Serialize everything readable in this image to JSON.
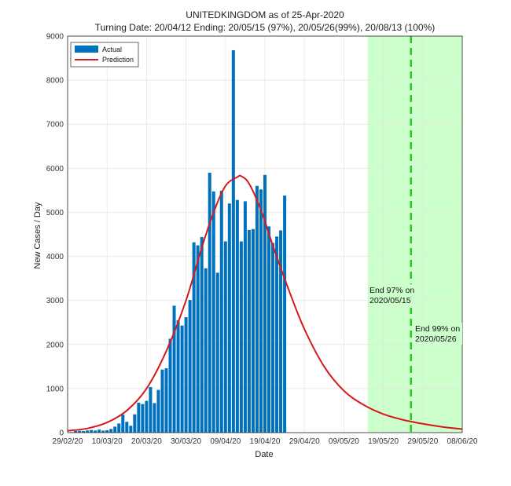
{
  "chart_data": {
    "type": "bar",
    "title": "UNITEDKINGDOM as of 25-Apr-2020",
    "subtitle": "Turning Date: 20/04/12  Ending: 20/05/15 (97%), 20/05/26(99%), 20/08/13 (100%)",
    "xlabel": "Date",
    "ylabel": "New Cases / Day",
    "xlim": [
      "2020-02-29",
      "2020-06-08"
    ],
    "ylim": [
      0,
      9000
    ],
    "grid": true,
    "legend_position": "top-left",
    "yticks": [
      0,
      1000,
      2000,
      3000,
      4000,
      5000,
      6000,
      7000,
      8000,
      9000
    ],
    "xticks": [
      "29/02/20",
      "10/03/20",
      "20/03/20",
      "30/03/20",
      "09/04/20",
      "19/04/20",
      "29/04/20",
      "09/05/20",
      "19/05/20",
      "29/05/20",
      "08/06/20"
    ],
    "xtick_dates": [
      "2020-02-29",
      "2020-03-10",
      "2020-03-20",
      "2020-03-30",
      "2020-04-09",
      "2020-04-19",
      "2020-04-29",
      "2020-05-09",
      "2020-05-19",
      "2020-05-29",
      "2020-06-08"
    ],
    "series": [
      {
        "name": "Actual",
        "kind": "bar",
        "color": "#0072BD",
        "x": [
          "2020-03-01",
          "2020-03-02",
          "2020-03-03",
          "2020-03-04",
          "2020-03-05",
          "2020-03-06",
          "2020-03-07",
          "2020-03-08",
          "2020-03-09",
          "2020-03-10",
          "2020-03-11",
          "2020-03-12",
          "2020-03-13",
          "2020-03-14",
          "2020-03-15",
          "2020-03-16",
          "2020-03-17",
          "2020-03-18",
          "2020-03-19",
          "2020-03-20",
          "2020-03-21",
          "2020-03-22",
          "2020-03-23",
          "2020-03-24",
          "2020-03-25",
          "2020-03-26",
          "2020-03-27",
          "2020-03-28",
          "2020-03-29",
          "2020-03-30",
          "2020-03-31",
          "2020-04-01",
          "2020-04-02",
          "2020-04-03",
          "2020-04-04",
          "2020-04-05",
          "2020-04-06",
          "2020-04-07",
          "2020-04-08",
          "2020-04-09",
          "2020-04-10",
          "2020-04-11",
          "2020-04-12",
          "2020-04-13",
          "2020-04-14",
          "2020-04-15",
          "2020-04-16",
          "2020-04-17",
          "2020-04-18",
          "2020-04-19",
          "2020-04-20",
          "2020-04-21",
          "2020-04-22",
          "2020-04-23",
          "2020-04-24",
          "2020-04-25"
        ],
        "values": [
          12,
          36,
          40,
          35,
          48,
          60,
          48,
          67,
          46,
          54,
          83,
          135,
          208,
          408,
          245,
          155,
          415,
          680,
          648,
          720,
          1035,
          670,
          970,
          1430,
          1460,
          2130,
          2880,
          2550,
          2430,
          2620,
          3010,
          4320,
          4250,
          4440,
          3730,
          5900,
          5475,
          3630,
          5490,
          4340,
          5200,
          8680,
          5280,
          4340,
          5250,
          4600,
          4620,
          5600,
          5520,
          5850,
          4680,
          4305,
          4450,
          4590,
          5380,
          0
        ]
      },
      {
        "name": "Prediction",
        "kind": "line",
        "color": "#D7191C",
        "x": [
          "2020-02-29",
          "2020-03-05",
          "2020-03-10",
          "2020-03-15",
          "2020-03-20",
          "2020-03-25",
          "2020-03-30",
          "2020-04-03",
          "2020-04-06",
          "2020-04-09",
          "2020-04-12",
          "2020-04-13",
          "2020-04-15",
          "2020-04-18",
          "2020-04-21",
          "2020-04-25",
          "2020-04-29",
          "2020-05-04",
          "2020-05-09",
          "2020-05-14",
          "2020-05-19",
          "2020-05-24",
          "2020-05-29",
          "2020-06-03",
          "2020-06-08"
        ],
        "values": [
          40,
          95,
          230,
          500,
          1000,
          1850,
          3000,
          4200,
          5000,
          5600,
          5800,
          5820,
          5650,
          5050,
          4250,
          3250,
          2350,
          1500,
          950,
          630,
          420,
          290,
          200,
          130,
          80
        ]
      }
    ],
    "annotations": [
      {
        "text_line1": "End 97% on",
        "text_line2": "2020/05/15",
        "date": "2020-05-26"
      },
      {
        "text_line1": "End 99% on",
        "text_line2": "2020/05/26",
        "date": "2020-05-26"
      }
    ],
    "shaded_region": {
      "start": "2020-05-15",
      "end": "2020-06-08",
      "color": "#CCFFCC"
    },
    "vline": {
      "date": "2020-05-26",
      "color": "#22CC22",
      "style": "dashed"
    }
  }
}
